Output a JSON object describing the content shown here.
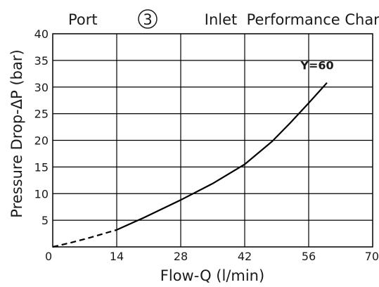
{
  "chart_data": {
    "type": "line",
    "title": {
      "prefix": "Port ",
      "port_number": "3",
      "suffix": " Inlet  Performance Chart"
    },
    "xlabel": "Flow-Q (l/min)",
    "ylabel": "Pressure Drop-ΔP (bar)",
    "xlim": [
      0,
      70
    ],
    "ylim": [
      0,
      40
    ],
    "x_ticks": [
      0,
      14,
      28,
      42,
      56,
      70
    ],
    "y_ticks": [
      5,
      10,
      15,
      20,
      25,
      30,
      35,
      40
    ],
    "grid": true,
    "series": [
      {
        "name": "Y=60",
        "dashed_segment": {
          "x": [
            0,
            4,
            8,
            12,
            14
          ],
          "y": [
            0,
            0.8,
            1.7,
            2.7,
            3.2
          ]
        },
        "solid_segment": {
          "x": [
            14,
            20,
            28,
            35,
            42,
            48,
            52,
            56,
            58,
            60
          ],
          "y": [
            3.2,
            5.5,
            8.8,
            11.9,
            15.5,
            19.8,
            23.3,
            27.0,
            28.9,
            30.8
          ]
        }
      }
    ]
  }
}
